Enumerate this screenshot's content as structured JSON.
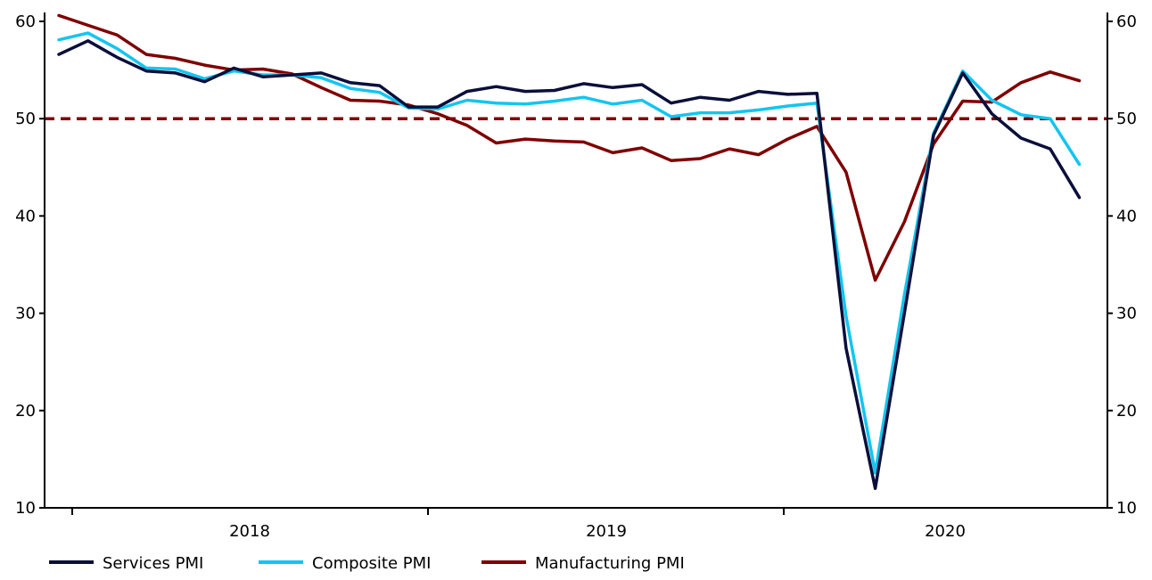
{
  "chart_data": {
    "type": "line",
    "title": "",
    "x_start": "2017-10",
    "x_end": "2020-09",
    "x_labels": [
      {
        "text": "2018",
        "year": 2018
      },
      {
        "text": "2019",
        "year": 2019
      },
      {
        "text": "2020",
        "year": 2020
      }
    ],
    "ylim": [
      10,
      60
    ],
    "y_ticks": [
      10,
      20,
      30,
      40,
      50,
      60
    ],
    "y_axis_both_sides": true,
    "reference_line": {
      "value": 50,
      "style": "dashed",
      "color": "#7f0000"
    },
    "grid": false,
    "legend_position": "bottom",
    "series": [
      {
        "name": "Services PMI",
        "color": "#0a0f3a",
        "values": [
          56.6,
          58.0,
          56.3,
          54.9,
          54.7,
          53.8,
          55.2,
          54.3,
          54.5,
          54.7,
          53.7,
          53.4,
          51.2,
          51.2,
          52.8,
          53.3,
          52.8,
          52.9,
          53.6,
          53.2,
          53.5,
          51.6,
          52.2,
          51.9,
          52.8,
          52.5,
          52.6,
          26.4,
          12.0,
          30.0,
          48.3,
          54.7,
          50.5,
          48.0,
          46.9,
          41.9
        ]
      },
      {
        "name": "Composite PMI",
        "color": "#13c5f0",
        "values": [
          58.1,
          58.8,
          57.2,
          55.2,
          55.1,
          54.1,
          54.9,
          54.5,
          54.5,
          54.2,
          53.1,
          52.7,
          51.1,
          51.0,
          51.9,
          51.6,
          51.5,
          51.8,
          52.2,
          51.5,
          51.9,
          50.2,
          50.6,
          50.6,
          50.9,
          51.3,
          51.6,
          29.7,
          13.6,
          31.9,
          48.5,
          54.9,
          51.9,
          50.4,
          50.0,
          45.3
        ]
      },
      {
        "name": "Manufacturing PMI",
        "color": "#7f0000",
        "values": [
          60.6,
          59.6,
          58.6,
          56.6,
          56.2,
          55.5,
          55.0,
          55.1,
          54.6,
          53.2,
          51.9,
          51.8,
          51.4,
          50.5,
          49.3,
          47.5,
          47.9,
          47.7,
          47.6,
          46.5,
          47.0,
          45.7,
          45.9,
          46.9,
          46.3,
          47.9,
          49.2,
          44.5,
          33.4,
          39.4,
          47.4,
          51.8,
          51.7,
          53.7,
          54.8,
          53.9
        ]
      }
    ]
  }
}
